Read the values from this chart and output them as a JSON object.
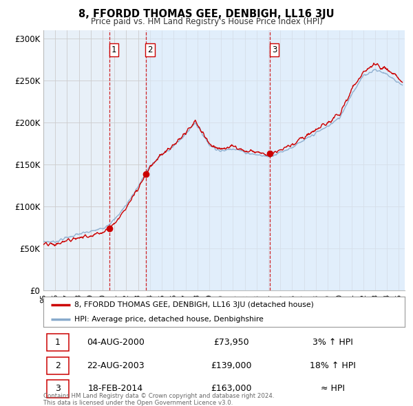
{
  "title": "8, FFORDD THOMAS GEE, DENBIGH, LL16 3JU",
  "subtitle": "Price paid vs. HM Land Registry's House Price Index (HPI)",
  "legend_line1": "8, FFORDD THOMAS GEE, DENBIGH, LL16 3JU (detached house)",
  "legend_line2": "HPI: Average price, detached house, Denbighshire",
  "footer1": "Contains HM Land Registry data © Crown copyright and database right 2024.",
  "footer2": "This data is licensed under the Open Government Licence v3.0.",
  "transactions": [
    {
      "num": 1,
      "date": "04-AUG-2000",
      "price": "£73,950",
      "change": "3% ↑ HPI",
      "year": 2000.58,
      "value": 73950
    },
    {
      "num": 2,
      "date": "22-AUG-2003",
      "price": "£139,000",
      "change": "18% ↑ HPI",
      "year": 2003.63,
      "value": 139000
    },
    {
      "num": 3,
      "date": "18-FEB-2014",
      "price": "£163,000",
      "change": "≈ HPI",
      "year": 2014.12,
      "value": 163000
    }
  ],
  "vline_color": "#cc0000",
  "shade_color": "#ddeeff",
  "red_line_color": "#cc0000",
  "blue_line_color": "#88aacc",
  "dot_color": "#cc0000",
  "ylim": [
    0,
    310000
  ],
  "yticks": [
    0,
    50000,
    100000,
    150000,
    200000,
    250000,
    300000
  ],
  "ytick_labels": [
    "£0",
    "£50K",
    "£100K",
    "£150K",
    "£200K",
    "£250K",
    "£300K"
  ],
  "xmin": 1995.0,
  "xmax": 2025.5,
  "background_color": "#ffffff",
  "grid_color": "#cccccc"
}
